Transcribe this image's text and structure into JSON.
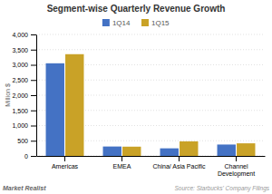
{
  "chart_data": {
    "type": "bar",
    "title": "Segment-wise Quarterly Revenue Growth",
    "categories": [
      "Americas",
      "EMEA",
      "China/ Asia Pacific",
      "Channel\nDevelopment"
    ],
    "series": [
      {
        "name": "1Q14",
        "color": "#4472c4",
        "values": [
          3050,
          310,
          250,
          375
        ]
      },
      {
        "name": "1Q15",
        "color": "#c9a227",
        "values": [
          3350,
          305,
          480,
          415
        ]
      }
    ],
    "ylabel": "Million $",
    "ylim": [
      0,
      4000
    ],
    "yticks": [
      0,
      500,
      {
        "value": 1000,
        "label": "1,000"
      },
      {
        "value": 1500,
        "label": "1,500"
      },
      {
        "value": 2000,
        "label": "2,000"
      },
      {
        "value": 2500,
        "label": "2,500"
      },
      {
        "value": 3000,
        "label": "3,000"
      },
      {
        "value": 3500,
        "label": "3,500"
      },
      {
        "value": 4000,
        "label": "4,000"
      }
    ],
    "grid": true,
    "legend": "top",
    "annotations": [
      "Market Realist",
      "Source: Starbucks' Company Filings"
    ]
  }
}
